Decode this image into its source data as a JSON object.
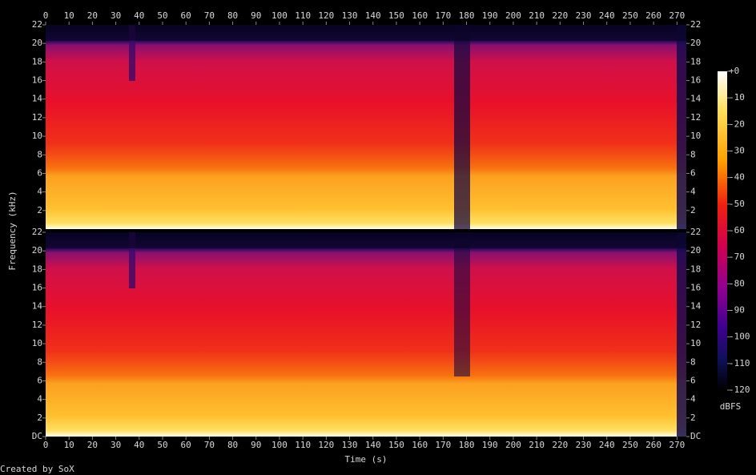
{
  "chart_data": {
    "type": "spectrogram",
    "xlabel": "Time (s)",
    "ylabel": "Frequency (kHz)",
    "xlim": [
      0,
      274
    ],
    "xticks": [
      0,
      10,
      20,
      30,
      40,
      50,
      60,
      70,
      80,
      90,
      100,
      110,
      120,
      130,
      140,
      150,
      160,
      170,
      180,
      190,
      200,
      210,
      220,
      230,
      240,
      250,
      260,
      270
    ],
    "channels": [
      {
        "ylim": [
          0,
          22
        ],
        "yticks": [
          22,
          20,
          18,
          16,
          14,
          12,
          10,
          8,
          6,
          4,
          2
        ]
      },
      {
        "ylim": [
          0,
          22
        ],
        "yticks": [
          22,
          20,
          18,
          16,
          14,
          12,
          10,
          8,
          6,
          4,
          2,
          {
            "value": 0,
            "label": "DC"
          }
        ]
      }
    ],
    "colorbar": {
      "label": "dBFS",
      "lim": [
        -120,
        0
      ],
      "ticks": [
        {
          "value": 0,
          "label": "+0"
        },
        -10,
        -20,
        -30,
        -40,
        -50,
        -60,
        -70,
        -80,
        -90,
        -100,
        -110,
        -120
      ]
    },
    "credit": "Created by SoX"
  }
}
